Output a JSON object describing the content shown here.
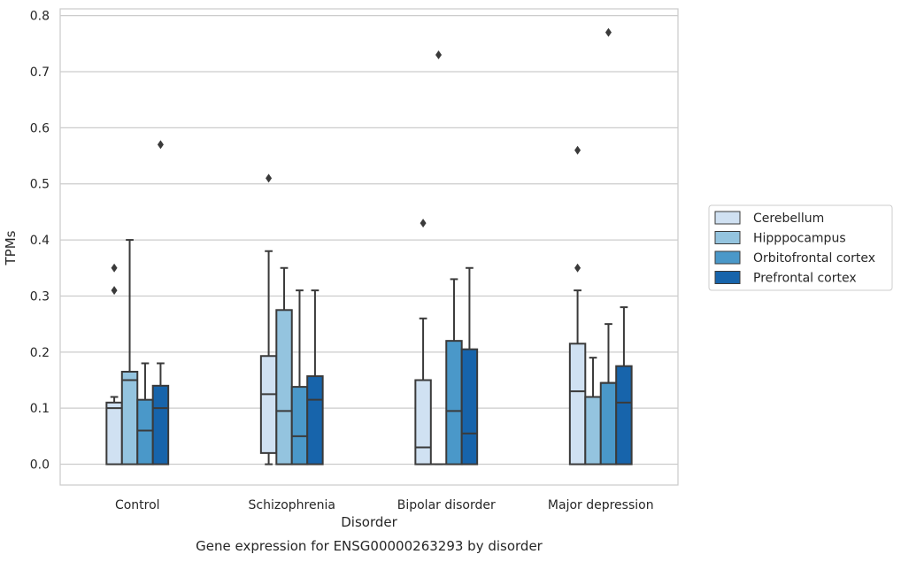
{
  "chart_data": {
    "type": "box",
    "title": "Gene expression for ENSG00000263293 by disorder",
    "xlabel": "Disorder",
    "ylabel": "TPMs",
    "ylim": [
      -0.037,
      0.812
    ],
    "yticks": [
      "0.0",
      "0.1",
      "0.2",
      "0.3",
      "0.4",
      "0.5",
      "0.6",
      "0.7",
      "0.8"
    ],
    "grid": "horizontal",
    "legend_position": "right",
    "categories": [
      "Control",
      "Schizophrenia",
      "Bipolar disorder",
      "Major depression"
    ],
    "series": [
      {
        "name": "Cerebellum",
        "color": "#d0e1f2",
        "boxes": [
          {
            "low": 0.0,
            "q1": 0.0,
            "median": 0.1,
            "q3": 0.11,
            "high": 0.12,
            "outliers": [
              0.31,
              0.35
            ]
          },
          {
            "low": 0.0,
            "q1": 0.02,
            "median": 0.125,
            "q3": 0.193,
            "high": 0.38,
            "outliers": [
              0.51
            ]
          },
          {
            "low": 0.0,
            "q1": 0.0,
            "median": 0.03,
            "q3": 0.15,
            "high": 0.26,
            "outliers": [
              0.43
            ]
          },
          {
            "low": 0.0,
            "q1": 0.0,
            "median": 0.13,
            "q3": 0.215,
            "high": 0.31,
            "outliers": [
              0.35,
              0.56
            ]
          }
        ]
      },
      {
        "name": "Hipppocampus",
        "color": "#94c4df",
        "boxes": [
          {
            "low": 0.0,
            "q1": 0.0,
            "median": 0.15,
            "q3": 0.165,
            "high": 0.4,
            "outliers": []
          },
          {
            "low": 0.0,
            "q1": 0.0,
            "median": 0.095,
            "q3": 0.275,
            "high": 0.35,
            "outliers": []
          },
          {
            "low": 0.0,
            "q1": 0.0,
            "median": 0.0,
            "q3": 0.0,
            "high": 0.0,
            "outliers": [
              0.73
            ]
          },
          {
            "low": 0.0,
            "q1": 0.0,
            "median": 0.12,
            "q3": 0.12,
            "high": 0.19,
            "outliers": []
          }
        ]
      },
      {
        "name": "Orbitofrontal cortex",
        "color": "#4a98c9",
        "boxes": [
          {
            "low": 0.0,
            "q1": 0.0,
            "median": 0.06,
            "q3": 0.115,
            "high": 0.18,
            "outliers": []
          },
          {
            "low": 0.0,
            "q1": 0.0,
            "median": 0.05,
            "q3": 0.138,
            "high": 0.31,
            "outliers": []
          },
          {
            "low": 0.0,
            "q1": 0.0,
            "median": 0.095,
            "q3": 0.22,
            "high": 0.33,
            "outliers": []
          },
          {
            "low": 0.0,
            "q1": 0.0,
            "median": 0.145,
            "q3": 0.145,
            "high": 0.25,
            "outliers": [
              0.77
            ]
          }
        ]
      },
      {
        "name": "Prefrontal cortex",
        "color": "#1764ab",
        "boxes": [
          {
            "low": 0.0,
            "q1": 0.0,
            "median": 0.1,
            "q3": 0.14,
            "high": 0.18,
            "outliers": [
              0.57
            ]
          },
          {
            "low": 0.0,
            "q1": 0.0,
            "median": 0.115,
            "q3": 0.157,
            "high": 0.31,
            "outliers": []
          },
          {
            "low": 0.0,
            "q1": 0.0,
            "median": 0.055,
            "q3": 0.205,
            "high": 0.35,
            "outliers": []
          },
          {
            "low": 0.0,
            "q1": 0.0,
            "median": 0.11,
            "q3": 0.175,
            "high": 0.28,
            "outliers": []
          }
        ]
      }
    ]
  }
}
